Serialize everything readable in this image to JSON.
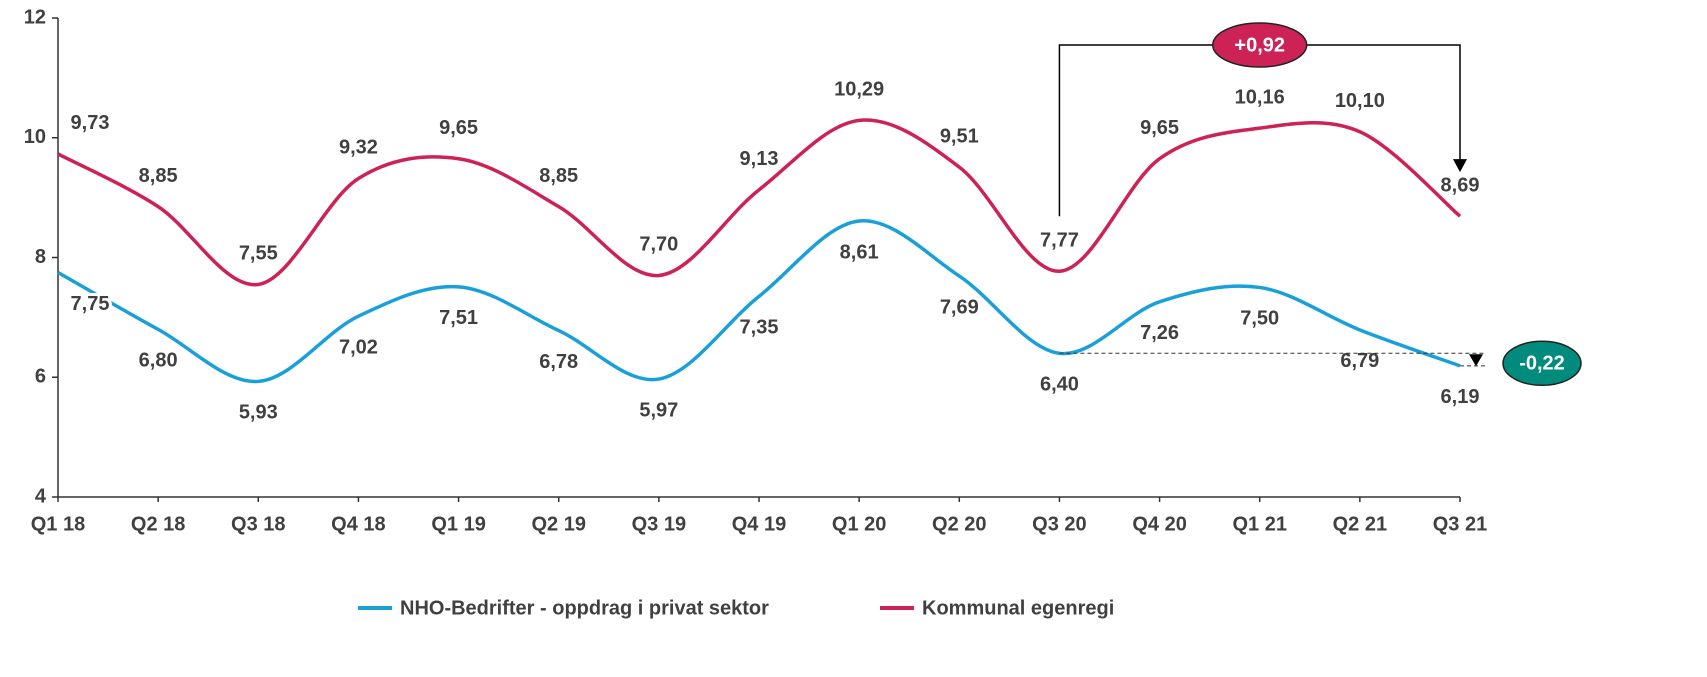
{
  "chart_data": {
    "type": "line",
    "categories": [
      "Q1 18",
      "Q2 18",
      "Q3 18",
      "Q4 18",
      "Q1 19",
      "Q2 19",
      "Q3 19",
      "Q4 19",
      "Q1 20",
      "Q2 20",
      "Q3 20",
      "Q4 20",
      "Q1 21",
      "Q2 21",
      "Q3 21"
    ],
    "series": [
      {
        "name": "NHO-Bedrifter - oppdrag i privat sektor",
        "color": "#1aa0d8",
        "values": [
          7.75,
          6.8,
          5.93,
          7.02,
          7.51,
          6.78,
          5.97,
          7.35,
          8.61,
          7.69,
          6.4,
          7.26,
          7.5,
          6.79,
          6.19
        ],
        "value_labels": [
          "7,75",
          "6,80",
          "5,93",
          "7,02",
          "7,51",
          "6,78",
          "5,97",
          "7,35",
          "8,61",
          "7,69",
          "6,40",
          "7,26",
          "7,50",
          "6,79",
          "6,19"
        ]
      },
      {
        "name": "Kommunal egenregi",
        "color": "#cd2255",
        "values": [
          9.73,
          8.85,
          7.55,
          9.32,
          9.65,
          8.85,
          7.7,
          9.13,
          10.29,
          9.51,
          7.77,
          9.65,
          10.16,
          10.1,
          8.69
        ],
        "value_labels": [
          "9,73",
          "8,85",
          "7,55",
          "9,32",
          "9,65",
          "8,85",
          "7,70",
          "9,13",
          "10,29",
          "9,51",
          "7,77",
          "9,65",
          "10,16",
          "10,10",
          "8,69"
        ]
      }
    ],
    "ylim": [
      4,
      12
    ],
    "yticks": [
      4,
      6,
      8,
      10,
      12
    ],
    "annotations": [
      {
        "text": "+0,92",
        "color": "#cd2255"
      },
      {
        "text": "-0,22",
        "color": "#008b7c"
      }
    ],
    "legend": "bottom"
  }
}
